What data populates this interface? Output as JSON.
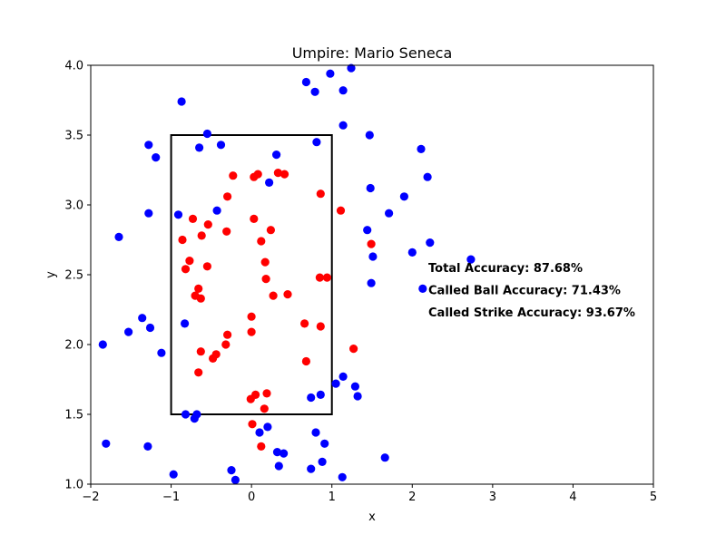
{
  "chart_data": {
    "type": "scatter",
    "title": "Umpire: Mario Seneca",
    "xlabel": "x",
    "ylabel": "y",
    "xlim": [
      -2,
      5
    ],
    "ylim": [
      1.0,
      4.0
    ],
    "x_ticks": [
      "−2",
      "−1",
      "0",
      "1",
      "2",
      "3",
      "4",
      "5"
    ],
    "x_tick_values": [
      -2,
      -1,
      0,
      1,
      2,
      3,
      4,
      5
    ],
    "y_ticks": [
      "1.0",
      "1.5",
      "2.0",
      "2.5",
      "3.0",
      "3.5",
      "4.0"
    ],
    "y_tick_values": [
      1.0,
      1.5,
      2.0,
      2.5,
      3.0,
      3.5,
      4.0
    ],
    "grid": false,
    "strike_zone": {
      "x0": -1,
      "x1": 1,
      "y0": 1.5,
      "y1": 3.5,
      "color": "#000000"
    },
    "annotations": [
      {
        "text": "Total Accuracy: 87.68%",
        "x": 2.2,
        "y": 2.55
      },
      {
        "text": "Called Ball Accuracy: 71.43%",
        "x": 2.2,
        "y": 2.39
      },
      {
        "text": "Called Strike Accuracy: 93.67%",
        "x": 2.2,
        "y": 2.23
      }
    ],
    "series": [
      {
        "color": "#0000ff",
        "points": [
          [
            -0.87,
            3.74
          ],
          [
            -0.55,
            3.51
          ],
          [
            -0.38,
            3.43
          ],
          [
            -0.65,
            3.41
          ],
          [
            -1.28,
            3.43
          ],
          [
            -1.19,
            3.34
          ],
          [
            0.68,
            3.88
          ],
          [
            0.98,
            3.94
          ],
          [
            1.24,
            3.98
          ],
          [
            0.79,
            3.81
          ],
          [
            1.14,
            3.82
          ],
          [
            1.14,
            3.57
          ],
          [
            0.81,
            3.45
          ],
          [
            1.47,
            3.5
          ],
          [
            2.11,
            3.4
          ],
          [
            0.31,
            3.36
          ],
          [
            0.22,
            3.16
          ],
          [
            2.19,
            3.2
          ],
          [
            1.48,
            3.12
          ],
          [
            1.9,
            3.06
          ],
          [
            -0.43,
            2.96
          ],
          [
            -0.91,
            2.93
          ],
          [
            -1.28,
            2.94
          ],
          [
            1.71,
            2.94
          ],
          [
            1.44,
            2.82
          ],
          [
            -1.65,
            2.77
          ],
          [
            2.22,
            2.73
          ],
          [
            2.0,
            2.66
          ],
          [
            1.51,
            2.63
          ],
          [
            2.73,
            2.61
          ],
          [
            1.49,
            2.44
          ],
          [
            2.13,
            2.4
          ],
          [
            -1.36,
            2.19
          ],
          [
            -1.26,
            2.12
          ],
          [
            -0.83,
            2.15
          ],
          [
            -1.53,
            2.09
          ],
          [
            -1.85,
            2.0
          ],
          [
            -1.12,
            1.94
          ],
          [
            1.14,
            1.77
          ],
          [
            1.05,
            1.72
          ],
          [
            1.29,
            1.7
          ],
          [
            0.74,
            1.62
          ],
          [
            0.86,
            1.64
          ],
          [
            1.32,
            1.63
          ],
          [
            -0.82,
            1.5
          ],
          [
            -0.68,
            1.5
          ],
          [
            -0.71,
            1.47
          ],
          [
            0.2,
            1.41
          ],
          [
            0.1,
            1.37
          ],
          [
            0.8,
            1.37
          ],
          [
            -1.81,
            1.29
          ],
          [
            0.91,
            1.29
          ],
          [
            -1.29,
            1.27
          ],
          [
            0.32,
            1.23
          ],
          [
            0.4,
            1.22
          ],
          [
            1.66,
            1.19
          ],
          [
            0.88,
            1.16
          ],
          [
            0.34,
            1.13
          ],
          [
            0.74,
            1.11
          ],
          [
            -0.25,
            1.1
          ],
          [
            -0.97,
            1.07
          ],
          [
            1.13,
            1.05
          ],
          [
            -0.2,
            1.03
          ]
        ]
      },
      {
        "color": "#ff0000",
        "points": [
          [
            -0.23,
            3.21
          ],
          [
            0.03,
            3.2
          ],
          [
            0.08,
            3.22
          ],
          [
            0.33,
            3.23
          ],
          [
            0.41,
            3.22
          ],
          [
            -0.3,
            3.06
          ],
          [
            0.86,
            3.08
          ],
          [
            1.11,
            2.96
          ],
          [
            -0.73,
            2.9
          ],
          [
            0.03,
            2.9
          ],
          [
            -0.54,
            2.86
          ],
          [
            -0.31,
            2.81
          ],
          [
            0.24,
            2.82
          ],
          [
            -0.62,
            2.78
          ],
          [
            -0.86,
            2.75
          ],
          [
            0.12,
            2.74
          ],
          [
            1.49,
            2.72
          ],
          [
            -0.77,
            2.6
          ],
          [
            0.17,
            2.59
          ],
          [
            -0.82,
            2.54
          ],
          [
            -0.55,
            2.56
          ],
          [
            0.18,
            2.47
          ],
          [
            0.85,
            2.48
          ],
          [
            0.94,
            2.48
          ],
          [
            -0.66,
            2.4
          ],
          [
            -0.7,
            2.35
          ],
          [
            -0.63,
            2.33
          ],
          [
            0.27,
            2.35
          ],
          [
            0.45,
            2.36
          ],
          [
            0.0,
            2.2
          ],
          [
            0.66,
            2.15
          ],
          [
            0.86,
            2.13
          ],
          [
            0.0,
            2.09
          ],
          [
            -0.3,
            2.07
          ],
          [
            -0.32,
            2.0
          ],
          [
            1.27,
            1.97
          ],
          [
            -0.63,
            1.95
          ],
          [
            -0.44,
            1.93
          ],
          [
            -0.48,
            1.9
          ],
          [
            0.68,
            1.88
          ],
          [
            -0.66,
            1.8
          ],
          [
            0.05,
            1.64
          ],
          [
            0.19,
            1.65
          ],
          [
            -0.01,
            1.61
          ],
          [
            0.16,
            1.54
          ],
          [
            0.01,
            1.43
          ],
          [
            0.12,
            1.27
          ]
        ]
      }
    ]
  }
}
